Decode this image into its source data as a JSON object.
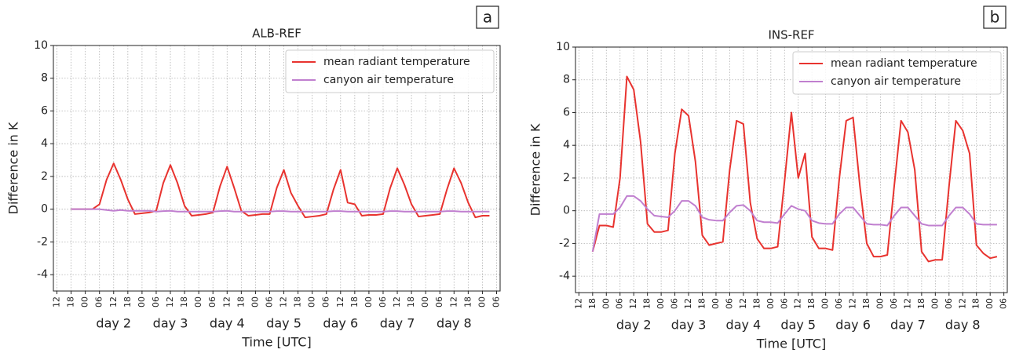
{
  "chart_data": [
    {
      "type": "line",
      "panel_label": "a",
      "title": "ALB-REF",
      "y_label": "Difference in K",
      "x_label": "Time [UTC]",
      "xlim": [
        10.5,
        199.5
      ],
      "ylim": [
        -5,
        10
      ],
      "yticks": [
        -4,
        -2,
        0,
        2,
        4,
        6,
        8,
        10
      ],
      "grid": true,
      "legend": "upper right",
      "xticks": [
        {
          "value": 12,
          "label": "12"
        },
        {
          "value": 18,
          "label": "18"
        },
        {
          "value": 24,
          "label": "00"
        },
        {
          "value": 30,
          "label": "06"
        },
        {
          "value": 36,
          "label": "12"
        },
        {
          "value": 42,
          "label": "18"
        },
        {
          "value": 48,
          "label": "00"
        },
        {
          "value": 54,
          "label": "06"
        },
        {
          "value": 60,
          "label": "12"
        },
        {
          "value": 66,
          "label": "18"
        },
        {
          "value": 72,
          "label": "00"
        },
        {
          "value": 78,
          "label": "06"
        },
        {
          "value": 84,
          "label": "12"
        },
        {
          "value": 90,
          "label": "18"
        },
        {
          "value": 96,
          "label": "00"
        },
        {
          "value": 102,
          "label": "06"
        },
        {
          "value": 108,
          "label": "12"
        },
        {
          "value": 114,
          "label": "18"
        },
        {
          "value": 120,
          "label": "00"
        },
        {
          "value": 126,
          "label": "06"
        },
        {
          "value": 132,
          "label": "12"
        },
        {
          "value": 138,
          "label": "18"
        },
        {
          "value": 144,
          "label": "00"
        },
        {
          "value": 150,
          "label": "06"
        },
        {
          "value": 156,
          "label": "12"
        },
        {
          "value": 162,
          "label": "18"
        },
        {
          "value": 168,
          "label": "00"
        },
        {
          "value": 174,
          "label": "06"
        },
        {
          "value": 180,
          "label": "12"
        },
        {
          "value": 186,
          "label": "18"
        },
        {
          "value": 192,
          "label": "00"
        },
        {
          "value": 198,
          "label": "06"
        }
      ],
      "day_labels": [
        {
          "value": 36,
          "label": "day 2"
        },
        {
          "value": 60,
          "label": "day 3"
        },
        {
          "value": 84,
          "label": "day 4"
        },
        {
          "value": 108,
          "label": "day 5"
        },
        {
          "value": 132,
          "label": "day 6"
        },
        {
          "value": 156,
          "label": "day 7"
        },
        {
          "value": 180,
          "label": "day 8"
        }
      ],
      "x": [
        18,
        21,
        24,
        27,
        30,
        33,
        36,
        39,
        42,
        45,
        48,
        51,
        54,
        57,
        60,
        63,
        66,
        69,
        72,
        75,
        78,
        81,
        84,
        87,
        90,
        93,
        96,
        99,
        102,
        105,
        108,
        111,
        114,
        117,
        120,
        123,
        126,
        129,
        132,
        135,
        138,
        141,
        144,
        147,
        150,
        153,
        156,
        159,
        162,
        165,
        168,
        171,
        174,
        177,
        180,
        183,
        186,
        189,
        192,
        195
      ],
      "series": [
        {
          "name": "mean radiant temperature",
          "color": "#e8332f",
          "values": [
            0,
            0,
            0,
            0,
            0.3,
            1.8,
            2.8,
            1.8,
            0.6,
            -0.3,
            -0.25,
            -0.2,
            -0.1,
            1.6,
            2.7,
            1.6,
            0.2,
            -0.4,
            -0.35,
            -0.3,
            -0.2,
            1.4,
            2.6,
            1.3,
            -0.1,
            -0.4,
            -0.35,
            -0.3,
            -0.3,
            1.3,
            2.4,
            1.0,
            0.2,
            -0.5,
            -0.45,
            -0.4,
            -0.3,
            1.2,
            2.4,
            0.4,
            0.3,
            -0.4,
            -0.35,
            -0.35,
            -0.3,
            1.3,
            2.5,
            1.5,
            0.3,
            -0.45,
            -0.4,
            -0.35,
            -0.3,
            1.2,
            2.5,
            1.6,
            0.4,
            -0.5,
            -0.4,
            -0.4
          ]
        },
        {
          "name": "canyon air temperature",
          "color": "#c07fcf",
          "values": [
            0,
            0,
            0,
            0,
            0,
            -0.05,
            -0.1,
            -0.05,
            -0.1,
            -0.1,
            -0.1,
            -0.1,
            -0.15,
            -0.12,
            -0.1,
            -0.15,
            -0.15,
            -0.15,
            -0.15,
            -0.15,
            -0.15,
            -0.12,
            -0.1,
            -0.15,
            -0.15,
            -0.15,
            -0.15,
            -0.15,
            -0.15,
            -0.12,
            -0.12,
            -0.15,
            -0.15,
            -0.15,
            -0.15,
            -0.15,
            -0.15,
            -0.12,
            -0.12,
            -0.15,
            -0.15,
            -0.15,
            -0.15,
            -0.15,
            -0.15,
            -0.12,
            -0.12,
            -0.15,
            -0.15,
            -0.15,
            -0.15,
            -0.15,
            -0.15,
            -0.12,
            -0.12,
            -0.15,
            -0.15,
            -0.15,
            -0.15,
            -0.15
          ]
        }
      ]
    },
    {
      "type": "line",
      "panel_label": "b",
      "title": "INS-REF",
      "y_label": "Difference in K",
      "x_label": "Time [UTC]",
      "xlim": [
        10.5,
        199.5
      ],
      "ylim": [
        -5,
        10
      ],
      "yticks": [
        -4,
        -2,
        0,
        2,
        4,
        6,
        8,
        10
      ],
      "grid": true,
      "legend": "upper right",
      "xticks": [
        {
          "value": 12,
          "label": "12"
        },
        {
          "value": 18,
          "label": "18"
        },
        {
          "value": 24,
          "label": "00"
        },
        {
          "value": 30,
          "label": "06"
        },
        {
          "value": 36,
          "label": "12"
        },
        {
          "value": 42,
          "label": "18"
        },
        {
          "value": 48,
          "label": "00"
        },
        {
          "value": 54,
          "label": "06"
        },
        {
          "value": 60,
          "label": "12"
        },
        {
          "value": 66,
          "label": "18"
        },
        {
          "value": 72,
          "label": "00"
        },
        {
          "value": 78,
          "label": "06"
        },
        {
          "value": 84,
          "label": "12"
        },
        {
          "value": 90,
          "label": "18"
        },
        {
          "value": 96,
          "label": "00"
        },
        {
          "value": 102,
          "label": "06"
        },
        {
          "value": 108,
          "label": "12"
        },
        {
          "value": 114,
          "label": "18"
        },
        {
          "value": 120,
          "label": "00"
        },
        {
          "value": 126,
          "label": "06"
        },
        {
          "value": 132,
          "label": "12"
        },
        {
          "value": 138,
          "label": "18"
        },
        {
          "value": 144,
          "label": "00"
        },
        {
          "value": 150,
          "label": "06"
        },
        {
          "value": 156,
          "label": "12"
        },
        {
          "value": 162,
          "label": "18"
        },
        {
          "value": 168,
          "label": "00"
        },
        {
          "value": 174,
          "label": "06"
        },
        {
          "value": 180,
          "label": "12"
        },
        {
          "value": 186,
          "label": "18"
        },
        {
          "value": 192,
          "label": "00"
        },
        {
          "value": 198,
          "label": "06"
        }
      ],
      "day_labels": [
        {
          "value": 36,
          "label": "day 2"
        },
        {
          "value": 60,
          "label": "day 3"
        },
        {
          "value": 84,
          "label": "day 4"
        },
        {
          "value": 108,
          "label": "day 5"
        },
        {
          "value": 132,
          "label": "day 6"
        },
        {
          "value": 156,
          "label": "day 7"
        },
        {
          "value": 180,
          "label": "day 8"
        }
      ],
      "x": [
        18,
        21,
        24,
        27,
        30,
        33,
        36,
        39,
        42,
        45,
        48,
        51,
        54,
        57,
        60,
        63,
        66,
        69,
        72,
        75,
        78,
        81,
        84,
        87,
        90,
        93,
        96,
        99,
        102,
        105,
        108,
        111,
        114,
        117,
        120,
        123,
        126,
        129,
        132,
        135,
        138,
        141,
        144,
        147,
        150,
        153,
        156,
        159,
        162,
        165,
        168,
        171,
        174,
        177,
        180,
        183,
        186,
        189,
        192,
        195
      ],
      "series": [
        {
          "name": "mean radiant temperature",
          "color": "#e8332f",
          "values": [
            -2.5,
            -0.9,
            -0.9,
            -1.0,
            2.0,
            8.2,
            7.4,
            4.2,
            -0.8,
            -1.3,
            -1.3,
            -1.2,
            3.5,
            6.2,
            5.8,
            3.0,
            -1.5,
            -2.1,
            -2.0,
            -1.9,
            2.5,
            5.5,
            5.3,
            0.5,
            -1.7,
            -2.3,
            -2.3,
            -2.2,
            1.8,
            6.0,
            2.0,
            3.5,
            -1.6,
            -2.3,
            -2.3,
            -2.4,
            2.0,
            5.5,
            5.7,
            1.5,
            -2.0,
            -2.8,
            -2.8,
            -2.7,
            1.5,
            5.5,
            4.8,
            2.5,
            -2.5,
            -3.1,
            -3.0,
            -3.0,
            1.5,
            5.5,
            4.9,
            3.5,
            -2.1,
            -2.6,
            -2.9,
            -2.8
          ]
        },
        {
          "name": "canyon air temperature",
          "color": "#c07fcf",
          "values": [
            -2.5,
            -0.2,
            -0.2,
            -0.2,
            0.2,
            0.9,
            0.9,
            0.6,
            0.1,
            -0.3,
            -0.35,
            -0.4,
            0,
            0.6,
            0.6,
            0.3,
            -0.4,
            -0.55,
            -0.6,
            -0.6,
            -0.1,
            0.3,
            0.35,
            0,
            -0.6,
            -0.7,
            -0.7,
            -0.75,
            -0.2,
            0.3,
            0.1,
            0,
            -0.6,
            -0.75,
            -0.8,
            -0.8,
            -0.2,
            0.2,
            0.2,
            -0.3,
            -0.8,
            -0.85,
            -0.85,
            -0.9,
            -0.3,
            0.2,
            0.2,
            -0.3,
            -0.8,
            -0.9,
            -0.9,
            -0.9,
            -0.3,
            0.2,
            0.2,
            -0.2,
            -0.8,
            -0.85,
            -0.85,
            -0.85
          ]
        }
      ]
    }
  ]
}
